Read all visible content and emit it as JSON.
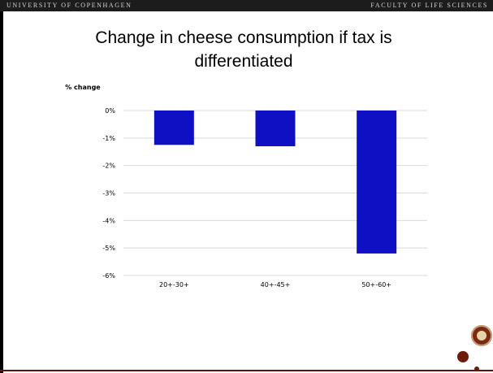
{
  "header": {
    "left": "UNIVERSITY OF COPENHAGEN",
    "right": "FACULTY OF LIFE SCIENCES"
  },
  "slide": {
    "title_line1": "Change in cheese consumption if tax is",
    "title_line2": "differentiated"
  },
  "colors": {
    "bar": "#0f0fc4",
    "accent": "#6b1d08"
  },
  "chart_data": {
    "type": "bar",
    "ylabel": "% change",
    "categories": [
      "20+-30+",
      "40+-45+",
      "50+-60+"
    ],
    "values": [
      -1.25,
      -1.3,
      -5.2
    ],
    "ylim": [
      -6,
      0
    ],
    "yticks": [
      0,
      -1,
      -2,
      -3,
      -4,
      -5,
      -6
    ],
    "ytick_labels": [
      "0%",
      "-1%",
      "-2%",
      "-3%",
      "-4%",
      "-5%",
      "-6%"
    ],
    "grid": true
  }
}
